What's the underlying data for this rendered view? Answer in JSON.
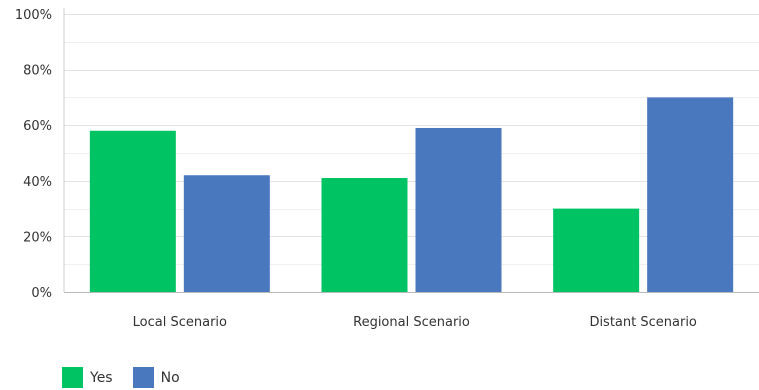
{
  "chart_data": {
    "type": "bar",
    "categories": [
      "Local Scenario",
      "Regional Scenario",
      "Distant Scenario"
    ],
    "series": [
      {
        "name": "Yes",
        "color": "#00c463",
        "values": [
          58,
          41,
          30
        ]
      },
      {
        "name": "No",
        "color": "#4a78bf",
        "values": [
          42,
          59,
          70
        ]
      }
    ],
    "ylim": [
      0,
      100
    ],
    "y_ticks": [
      "0%",
      "20%",
      "40%",
      "60%",
      "80%",
      "100%"
    ],
    "y_tick_values": [
      0,
      20,
      40,
      60,
      80,
      100
    ],
    "grid": true,
    "legend_position": "bottom-left",
    "xlabel": "",
    "ylabel": ""
  }
}
